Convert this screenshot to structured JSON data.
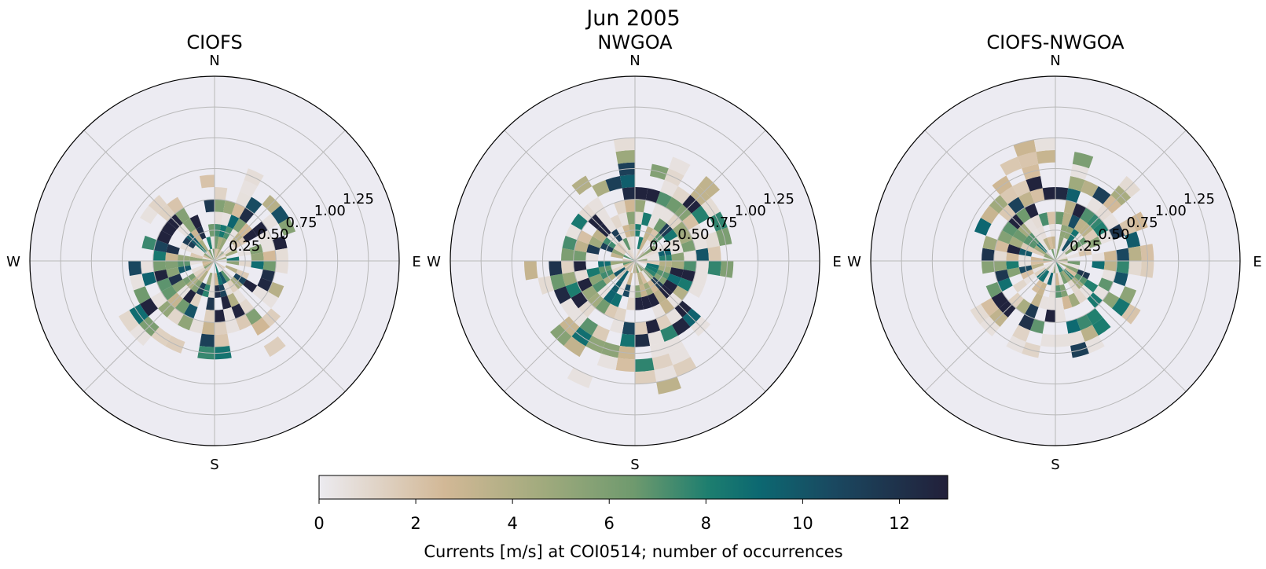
{
  "chart_data": {
    "type": "heatmap",
    "subtype": "polar-rose-histogram",
    "title": "Jun 2005",
    "panels": [
      {
        "title": "CIOFS",
        "seed": 17,
        "dir_bias_deg": 200,
        "spread": 0.85
      },
      {
        "title": "NWGOA",
        "seed": 53,
        "dir_bias_deg": 185,
        "spread": 1.0
      },
      {
        "title": "CIOFS-NWGOA",
        "seed": 91,
        "dir_bias_deg": 10,
        "spread": 0.9
      }
    ],
    "compass_labels": [
      "N",
      "E",
      "S",
      "W"
    ],
    "radial_ticks": [
      0.25,
      0.5,
      0.75,
      1.0,
      1.25
    ],
    "radial_tick_labels": [
      "0.25",
      "0.50",
      "0.75",
      "1.00",
      "1.25"
    ],
    "rmax": 1.5,
    "n_direction_bins": 36,
    "speed_bin_width": 0.1,
    "max_speed_extent": 1.05,
    "colorbar": {
      "label": "Currents [m/s] at COI0514; number of occurrences",
      "vmin": 0,
      "vmax": 13,
      "ticks": [
        0,
        2,
        4,
        6,
        8,
        10,
        12
      ],
      "tick_labels": [
        "0",
        "2",
        "4",
        "6",
        "8",
        "10",
        "12"
      ],
      "colormap": [
        "#ecebf0",
        "#d2b896",
        "#a3ab7e",
        "#6f9a6e",
        "#1d7e6f",
        "#0c6871",
        "#1a4860",
        "#22203a"
      ],
      "colormap_positions": [
        0,
        0.2,
        0.35,
        0.5,
        0.62,
        0.7,
        0.82,
        1.0
      ]
    },
    "axes_face": "#ecebf2",
    "grid_color": "#b8b8b8"
  }
}
